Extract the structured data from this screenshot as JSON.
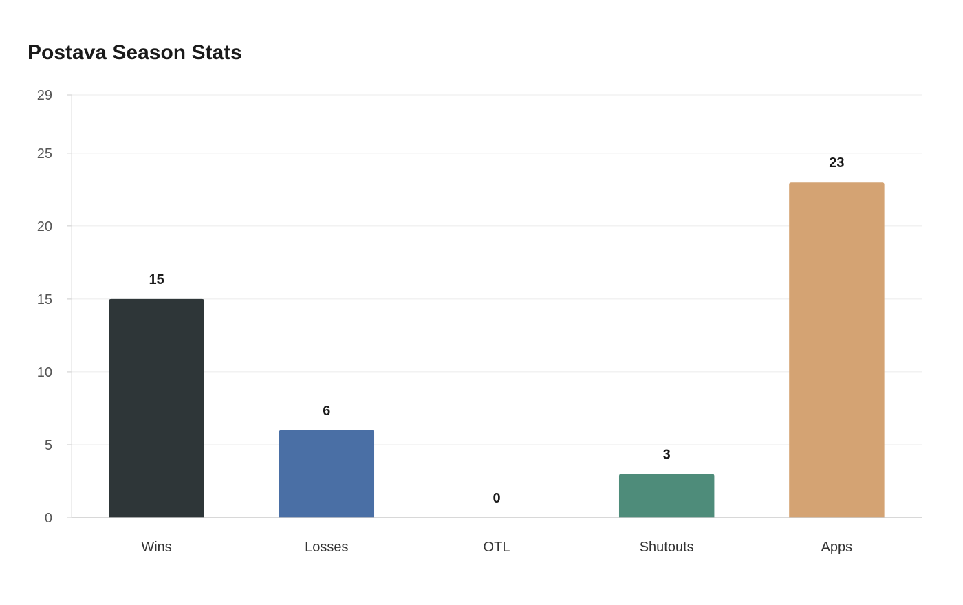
{
  "chart_data": {
    "type": "bar",
    "title": "Postava Season Stats",
    "xlabel": "",
    "ylabel": "",
    "categories": [
      "Wins",
      "Losses",
      "OTL",
      "Shutouts",
      "Apps"
    ],
    "values": [
      15,
      6,
      0,
      3,
      23
    ],
    "colors": [
      "#2e3638",
      "#4a6fa5",
      "#9e9e9e",
      "#4e8c7a",
      "#d4a373"
    ],
    "ylim": [
      0,
      29
    ],
    "yticks": [
      0,
      5,
      10,
      15,
      20,
      25,
      29
    ],
    "grid": true,
    "legend": "none",
    "data_labels": true
  }
}
